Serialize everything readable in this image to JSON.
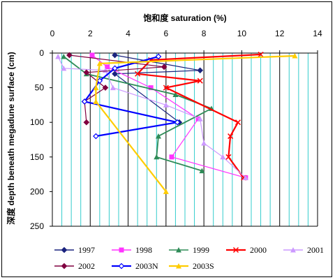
{
  "chart_data": {
    "type": "line",
    "xlabel": "饱和度 saturation (%)",
    "ylabel": "深度 depth beneath megadune surface (cm)",
    "xlim": [
      0,
      14
    ],
    "ylim": [
      0,
      250
    ],
    "y_reversed": true,
    "x_ticks": [
      "0",
      "2",
      "4",
      "6",
      "8",
      "10",
      "12",
      "14"
    ],
    "y_ticks": [
      "0",
      "50",
      "100",
      "150",
      "200",
      "250"
    ],
    "grid": "vertical",
    "legend_position": "bottom",
    "series": [
      {
        "name": "1997",
        "color": "#1a237e",
        "marker": "diamond",
        "points": [
          [
            3.3,
            3
          ],
          [
            7.8,
            25
          ],
          [
            3.3,
            30
          ],
          [
            6.7,
            100
          ]
        ]
      },
      {
        "name": "1998",
        "color": "#ff33ff",
        "marker": "square",
        "points": [
          [
            2.1,
            3
          ],
          [
            2.9,
            20
          ],
          [
            5.2,
            50
          ],
          [
            7.7,
            95
          ],
          [
            6.3,
            150
          ],
          [
            10.2,
            180
          ]
        ]
      },
      {
        "name": "1999",
        "color": "#2e8b57",
        "marker": "triangle",
        "points": [
          [
            0.6,
            5
          ],
          [
            1.8,
            30
          ],
          [
            6.5,
            60
          ],
          [
            8.4,
            80
          ],
          [
            5.6,
            120
          ],
          [
            5.5,
            150
          ],
          [
            7.9,
            170
          ]
        ]
      },
      {
        "name": "2000",
        "color": "#ff0000",
        "marker": "cross",
        "points": [
          [
            11.0,
            2
          ],
          [
            5.2,
            10
          ],
          [
            4.5,
            30
          ],
          [
            7.8,
            40
          ],
          [
            6.0,
            50
          ],
          [
            9.8,
            100
          ],
          [
            9.4,
            120
          ],
          [
            9.3,
            150
          ],
          [
            10.1,
            180
          ]
        ]
      },
      {
        "name": "2001",
        "color": "#cc99ff",
        "marker": "triangle",
        "points": [
          [
            0.3,
            5
          ],
          [
            0.6,
            22
          ],
          [
            2.8,
            25
          ],
          [
            3.2,
            50
          ],
          [
            6.0,
            75
          ],
          [
            7.8,
            95
          ],
          [
            8.0,
            130
          ],
          [
            9.0,
            150
          ],
          [
            10.2,
            180
          ]
        ]
      },
      {
        "name": "2002",
        "color": "#800040",
        "marker": "diamond",
        "points": [
          [
            0.9,
            3
          ],
          [
            5.9,
            20
          ],
          [
            1.8,
            28
          ],
          [
            2.8,
            50
          ],
          [
            1.7,
            70
          ],
          [
            1.8,
            100
          ]
        ]
      },
      {
        "name": "2003N",
        "color": "#0000ff",
        "marker": "diamond-open",
        "points": [
          [
            5.6,
            5
          ],
          [
            3.3,
            22
          ],
          [
            2.5,
            40
          ],
          [
            1.7,
            70
          ],
          [
            6.6,
            100
          ],
          [
            2.3,
            120
          ]
        ]
      },
      {
        "name": "2003S",
        "color": "#ffcc00",
        "marker": "triangle",
        "points": [
          [
            12.8,
            4
          ],
          [
            2.5,
            15
          ],
          [
            2.3,
            50
          ],
          [
            2.3,
            70
          ],
          [
            6.0,
            200
          ]
        ]
      }
    ]
  }
}
